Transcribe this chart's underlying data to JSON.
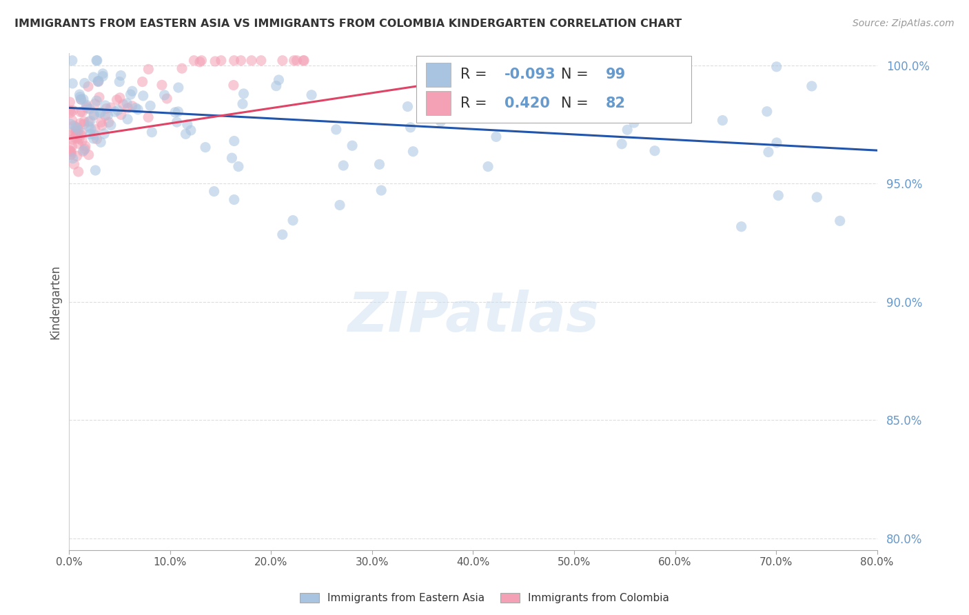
{
  "title": "IMMIGRANTS FROM EASTERN ASIA VS IMMIGRANTS FROM COLOMBIA KINDERGARTEN CORRELATION CHART",
  "source": "Source: ZipAtlas.com",
  "ylabel": "Kindergarten",
  "watermark": "ZIPatlas",
  "legend_label_blue": "Immigrants from Eastern Asia",
  "legend_label_pink": "Immigrants from Colombia",
  "R_blue": -0.093,
  "N_blue": 99,
  "R_pink": 0.42,
  "N_pink": 82,
  "color_blue": "#a8c4e0",
  "color_pink": "#f4a0b5",
  "line_color_blue": "#2255aa",
  "line_color_pink": "#dd4466",
  "tick_color": "#6699cc",
  "xlim": [
    0.0,
    0.8
  ],
  "ylim": [
    0.795,
    1.005
  ],
  "yticks": [
    0.8,
    0.85,
    0.9,
    0.95,
    1.0
  ],
  "xticks": [
    0.0,
    0.1,
    0.2,
    0.3,
    0.4,
    0.5,
    0.6,
    0.7,
    0.8
  ],
  "blue_trend_x": [
    0.0,
    0.8
  ],
  "blue_trend_y": [
    0.982,
    0.964
  ],
  "pink_trend_x": [
    0.0,
    0.42
  ],
  "pink_trend_y": [
    0.969,
    0.996
  ],
  "grid_color": "#dddddd",
  "dot_size": 120,
  "dot_alpha": 0.55
}
